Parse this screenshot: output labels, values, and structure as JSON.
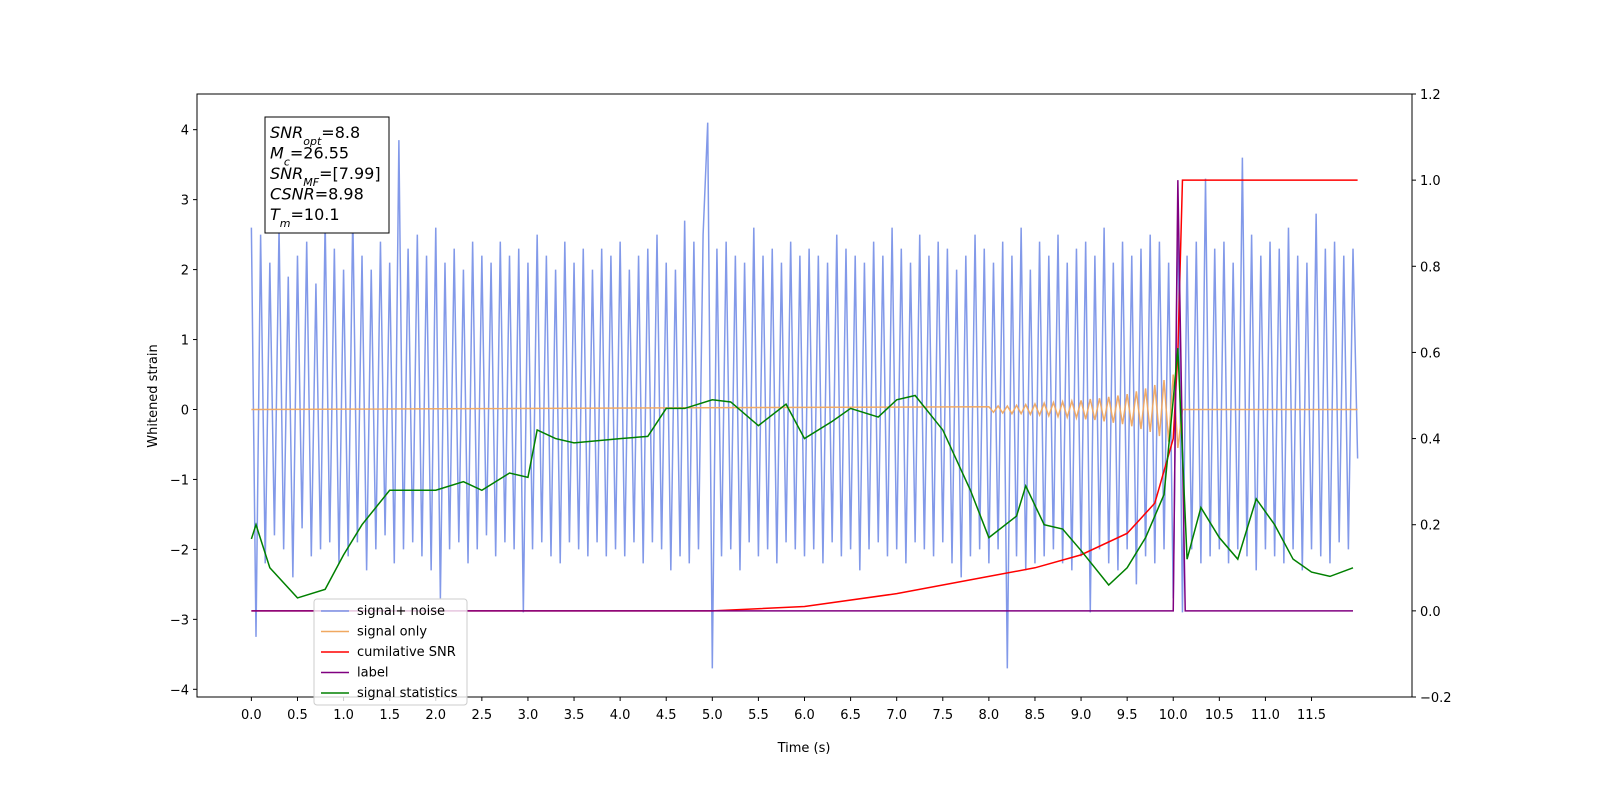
{
  "chart_data": {
    "type": "line",
    "xlabel": "Time (s)",
    "ylabel": "Whitened strain",
    "xlim": [
      -0.59,
      12.59
    ],
    "ylim": [
      -4.11,
      4.51
    ],
    "y2lim": [
      -0.2,
      1.2
    ],
    "xticks": [
      {
        "value": 0,
        "label": "0.0"
      },
      0.5,
      {
        "value": 1,
        "label": "1.0"
      },
      1.5,
      {
        "value": 2,
        "label": "2.0"
      },
      2.5,
      {
        "value": 3,
        "label": "3.0"
      },
      3.5,
      {
        "value": 4,
        "label": "4.0"
      },
      4.5,
      {
        "value": 5,
        "label": "5.0"
      },
      5.5,
      {
        "value": 6,
        "label": "6.0"
      },
      6.5,
      {
        "value": 7,
        "label": "7.0"
      },
      7.5,
      {
        "value": 8,
        "label": "8.0"
      },
      8.5,
      {
        "value": 9,
        "label": "9.0"
      },
      9.5,
      {
        "value": 10,
        "label": "10.0"
      },
      10.5,
      {
        "value": 11,
        "label": "11.0"
      },
      11.5
    ],
    "yticks": [
      {
        "value": -4,
        "label": "−4"
      },
      {
        "value": -3,
        "label": "−3"
      },
      {
        "value": -2,
        "label": "−2"
      },
      {
        "value": -1,
        "label": "−1"
      },
      0,
      1,
      2,
      3,
      4
    ],
    "y2ticks": [
      {
        "value": -0.2,
        "label": "−0.2"
      },
      {
        "value": 0,
        "label": "0.0"
      },
      0.2,
      0.4,
      0.6,
      0.8,
      {
        "value": 1,
        "label": "1.0"
      },
      1.2
    ],
    "legend": "lower left",
    "annotations": [
      {
        "symbol": "SNR",
        "subscript": "opt",
        "text": "=8.8"
      },
      {
        "symbol": "M",
        "subscript": "c",
        "text": "=26.55"
      },
      {
        "symbol": "SNR",
        "subscript": "MF",
        "text": "=[7.99]"
      },
      {
        "symbol": "CSNR",
        "subscript": null,
        "text": "=8.98"
      },
      {
        "symbol": "T",
        "subscript": "m",
        "text": "=10.1"
      }
    ],
    "series": [
      {
        "name": "signal+ noise",
        "color": "#7b94e8",
        "axis": "y",
        "x": [
          0,
          0.05,
          0.1,
          0.15,
          0.2,
          0.25,
          0.3,
          0.35,
          0.4,
          0.45,
          0.5,
          0.55,
          0.6,
          0.65,
          0.7,
          0.75,
          0.8,
          0.85,
          0.9,
          0.95,
          1,
          1.05,
          1.1,
          1.15,
          1.2,
          1.25,
          1.3,
          1.35,
          1.4,
          1.45,
          1.5,
          1.55,
          1.6,
          1.65,
          1.7,
          1.75,
          1.8,
          1.85,
          1.9,
          1.95,
          2,
          2.05,
          2.1,
          2.15,
          2.2,
          2.25,
          2.3,
          2.35,
          2.4,
          2.45,
          2.5,
          2.55,
          2.6,
          2.65,
          2.7,
          2.75,
          2.8,
          2.85,
          2.9,
          2.95,
          3,
          3.05,
          3.1,
          3.15,
          3.2,
          3.25,
          3.3,
          3.35,
          3.4,
          3.45,
          3.5,
          3.55,
          3.6,
          3.65,
          3.7,
          3.75,
          3.8,
          3.85,
          3.9,
          3.95,
          4,
          4.05,
          4.1,
          4.15,
          4.2,
          4.25,
          4.3,
          4.35,
          4.4,
          4.45,
          4.5,
          4.55,
          4.6,
          4.65,
          4.7,
          4.75,
          4.8,
          4.85,
          4.9,
          4.95,
          5,
          5.05,
          5.1,
          5.15,
          5.2,
          5.25,
          5.3,
          5.35,
          5.4,
          5.45,
          5.5,
          5.55,
          5.6,
          5.65,
          5.7,
          5.75,
          5.8,
          5.85,
          5.9,
          5.95,
          6,
          6.05,
          6.1,
          6.15,
          6.2,
          6.25,
          6.3,
          6.35,
          6.4,
          6.45,
          6.5,
          6.55,
          6.6,
          6.65,
          6.7,
          6.75,
          6.8,
          6.85,
          6.9,
          6.95,
          7,
          7.05,
          7.1,
          7.15,
          7.2,
          7.25,
          7.3,
          7.35,
          7.4,
          7.45,
          7.5,
          7.55,
          7.6,
          7.65,
          7.7,
          7.75,
          7.8,
          7.85,
          7.9,
          7.95,
          8,
          8.05,
          8.1,
          8.15,
          8.2,
          8.25,
          8.3,
          8.35,
          8.4,
          8.45,
          8.5,
          8.55,
          8.6,
          8.65,
          8.7,
          8.75,
          8.8,
          8.85,
          8.9,
          8.95,
          9,
          9.05,
          9.1,
          9.15,
          9.2,
          9.25,
          9.3,
          9.35,
          9.4,
          9.45,
          9.5,
          9.55,
          9.6,
          9.65,
          9.7,
          9.75,
          9.8,
          9.85,
          9.9,
          9.95,
          10,
          10.05,
          10.1,
          10.15,
          10.2,
          10.25,
          10.3,
          10.35,
          10.4,
          10.45,
          10.5,
          10.55,
          10.6,
          10.65,
          10.7,
          10.75,
          10.8,
          10.85,
          10.9,
          10.95,
          11,
          11.05,
          11.1,
          11.15,
          11.2,
          11.25,
          11.3,
          11.35,
          11.4,
          11.45,
          11.5,
          11.55,
          11.6,
          11.65,
          11.7,
          11.75,
          11.8,
          11.85,
          11.9,
          11.95,
          12
        ],
        "values": [
          2.6,
          -3.25,
          2.5,
          -2.2,
          2.1,
          -1.8,
          2.6,
          -2.0,
          1.9,
          -2.4,
          2.2,
          -1.7,
          2.4,
          -2.1,
          1.8,
          -2.0,
          2.7,
          -1.9,
          2.3,
          -2.2,
          2.0,
          -2.1,
          2.8,
          -1.9,
          2.2,
          -2.3,
          2.0,
          -2.0,
          2.4,
          -1.8,
          2.1,
          -2.2,
          3.85,
          -2.0,
          2.3,
          -1.9,
          2.5,
          -2.1,
          2.2,
          -2.3,
          2.6,
          -2.7,
          2.1,
          -2.0,
          2.3,
          -1.9,
          2.0,
          -2.2,
          2.4,
          -2.0,
          2.2,
          -1.8,
          2.1,
          -2.1,
          2.4,
          -1.9,
          2.2,
          -2.0,
          2.3,
          -2.9,
          2.1,
          -2.0,
          2.5,
          -1.9,
          2.2,
          -2.1,
          2.0,
          -2.2,
          2.4,
          -1.9,
          2.1,
          -2.0,
          2.3,
          -2.1,
          2.0,
          -1.9,
          2.3,
          -2.1,
          2.2,
          -2.0,
          2.4,
          -2.1,
          2.0,
          -1.9,
          2.2,
          -2.2,
          2.3,
          -1.9,
          2.5,
          -2.0,
          2.1,
          -2.3,
          2.0,
          -2.1,
          2.7,
          -2.2,
          2.4,
          -2.0,
          2.5,
          4.1,
          -3.7,
          2.3,
          -2.1,
          2.4,
          -2.0,
          2.2,
          -2.3,
          2.1,
          -1.9,
          2.6,
          -2.1,
          2.2,
          -2.0,
          2.3,
          -2.2,
          2.1,
          -1.9,
          2.4,
          -2.0,
          2.2,
          -2.1,
          2.3,
          -2.0,
          2.2,
          -2.2,
          2.1,
          -1.9,
          2.5,
          -2.1,
          2.3,
          -2.0,
          2.2,
          -2.3,
          2.1,
          -2.0,
          2.4,
          -1.9,
          2.2,
          -2.1,
          2.6,
          -2.0,
          2.3,
          -2.2,
          2.1,
          -1.9,
          2.5,
          -2.0,
          2.2,
          -2.1,
          2.4,
          -1.9,
          2.3,
          -2.2,
          2.0,
          -2.4,
          2.2,
          -2.1,
          2.5,
          -2.0,
          2.3,
          -2.2,
          2.1,
          -2.0,
          2.4,
          -3.7,
          2.2,
          -2.1,
          2.6,
          -2.3,
          2.0,
          -2.2,
          2.4,
          -2.1,
          2.2,
          -2.0,
          2.5,
          -2.2,
          2.1,
          -2.3,
          2.3,
          -2.1,
          2.4,
          -2.9,
          2.2,
          -2.0,
          2.6,
          -2.2,
          2.1,
          -2.3,
          2.4,
          -2.0,
          2.2,
          -2.5,
          2.3,
          -2.1,
          2.5,
          -2.2,
          2.4,
          -2.0,
          2.1,
          -2.7,
          2.9,
          -2.9,
          2.2,
          -2.0,
          2.4,
          -2.2,
          3.3,
          -2.1,
          2.3,
          -2.0,
          2.4,
          -2.2,
          2.1,
          -2.0,
          3.6,
          -2.1,
          2.5,
          -2.3,
          2.2,
          -2.0,
          2.4,
          -2.1,
          2.3,
          -2.2,
          2.6,
          -2.0,
          2.2,
          -2.3,
          2.1,
          -2.0,
          2.8,
          -2.1,
          2.3,
          -2.2,
          2.4,
          -1.9,
          2.2,
          -2.0,
          2.3,
          -0.7
        ]
      },
      {
        "name": "signal only",
        "color": "#f0a860",
        "axis": "y",
        "x": [
          0,
          8,
          8.05,
          8.1,
          8.15,
          8.2,
          8.25,
          8.3,
          8.35,
          8.4,
          8.45,
          8.5,
          8.55,
          8.6,
          8.65,
          8.7,
          8.75,
          8.8,
          8.85,
          8.9,
          8.95,
          9,
          9.05,
          9.1,
          9.15,
          9.2,
          9.25,
          9.3,
          9.35,
          9.4,
          9.45,
          9.5,
          9.55,
          9.6,
          9.65,
          9.7,
          9.75,
          9.8,
          9.85,
          9.9,
          9.95,
          10,
          10.05,
          10.1,
          12
        ],
        "values": [
          0,
          0.04,
          -0.04,
          0.05,
          -0.05,
          0.05,
          -0.06,
          0.06,
          -0.06,
          0.07,
          -0.07,
          0.08,
          -0.08,
          0.09,
          -0.09,
          0.1,
          -0.1,
          0.11,
          -0.11,
          0.12,
          -0.12,
          0.13,
          -0.14,
          0.15,
          -0.15,
          0.16,
          -0.17,
          0.18,
          -0.19,
          0.2,
          -0.21,
          0.22,
          -0.24,
          0.26,
          -0.28,
          0.3,
          -0.32,
          0.35,
          -0.38,
          0.42,
          -0.46,
          0.5,
          -0.55,
          0,
          0
        ]
      },
      {
        "name": "cumilative SNR",
        "color": "#ff0000",
        "axis": "y2",
        "x": [
          0,
          5,
          6,
          7,
          7.5,
          8,
          8.5,
          9,
          9.5,
          9.8,
          10,
          10.05,
          10.1,
          12
        ],
        "values": [
          0,
          0,
          0.01,
          0.04,
          0.06,
          0.08,
          0.1,
          0.13,
          0.18,
          0.25,
          0.4,
          0.6,
          1,
          1
        ]
      },
      {
        "name": "label",
        "color": "#800080",
        "axis": "y2",
        "x": [
          0,
          10,
          10.05,
          10.13,
          11.95
        ],
        "values": [
          0,
          0,
          1,
          0,
          0
        ]
      },
      {
        "name": "signal statistics",
        "color": "#008000",
        "axis": "y2",
        "x": [
          0,
          0.05,
          0.2,
          0.5,
          0.8,
          1,
          1.2,
          1.5,
          2,
          2.3,
          2.5,
          2.8,
          3,
          3.1,
          3.3,
          3.5,
          4,
          4.3,
          4.5,
          4.7,
          5,
          5.2,
          5.5,
          5.8,
          6,
          6.3,
          6.5,
          6.8,
          7,
          7.2,
          7.5,
          7.8,
          8,
          8.3,
          8.4,
          8.6,
          8.8,
          9,
          9.3,
          9.5,
          9.7,
          9.9,
          10,
          10.05,
          10.15,
          10.3,
          10.5,
          10.7,
          10.9,
          11.1,
          11.3,
          11.5,
          11.7,
          11.95
        ],
        "values": [
          0.167,
          0.2,
          0.1,
          0.03,
          0.05,
          0.13,
          0.2,
          0.28,
          0.28,
          0.3,
          0.28,
          0.32,
          0.31,
          0.42,
          0.4,
          0.39,
          0.4,
          0.405,
          0.47,
          0.47,
          0.49,
          0.485,
          0.43,
          0.48,
          0.4,
          0.44,
          0.47,
          0.45,
          0.49,
          0.5,
          0.42,
          0.28,
          0.17,
          0.22,
          0.29,
          0.2,
          0.19,
          0.14,
          0.06,
          0.1,
          0.17,
          0.27,
          0.49,
          0.61,
          0.12,
          0.24,
          0.17,
          0.12,
          0.26,
          0.2,
          0.12,
          0.09,
          0.08,
          0.1
        ]
      }
    ]
  }
}
